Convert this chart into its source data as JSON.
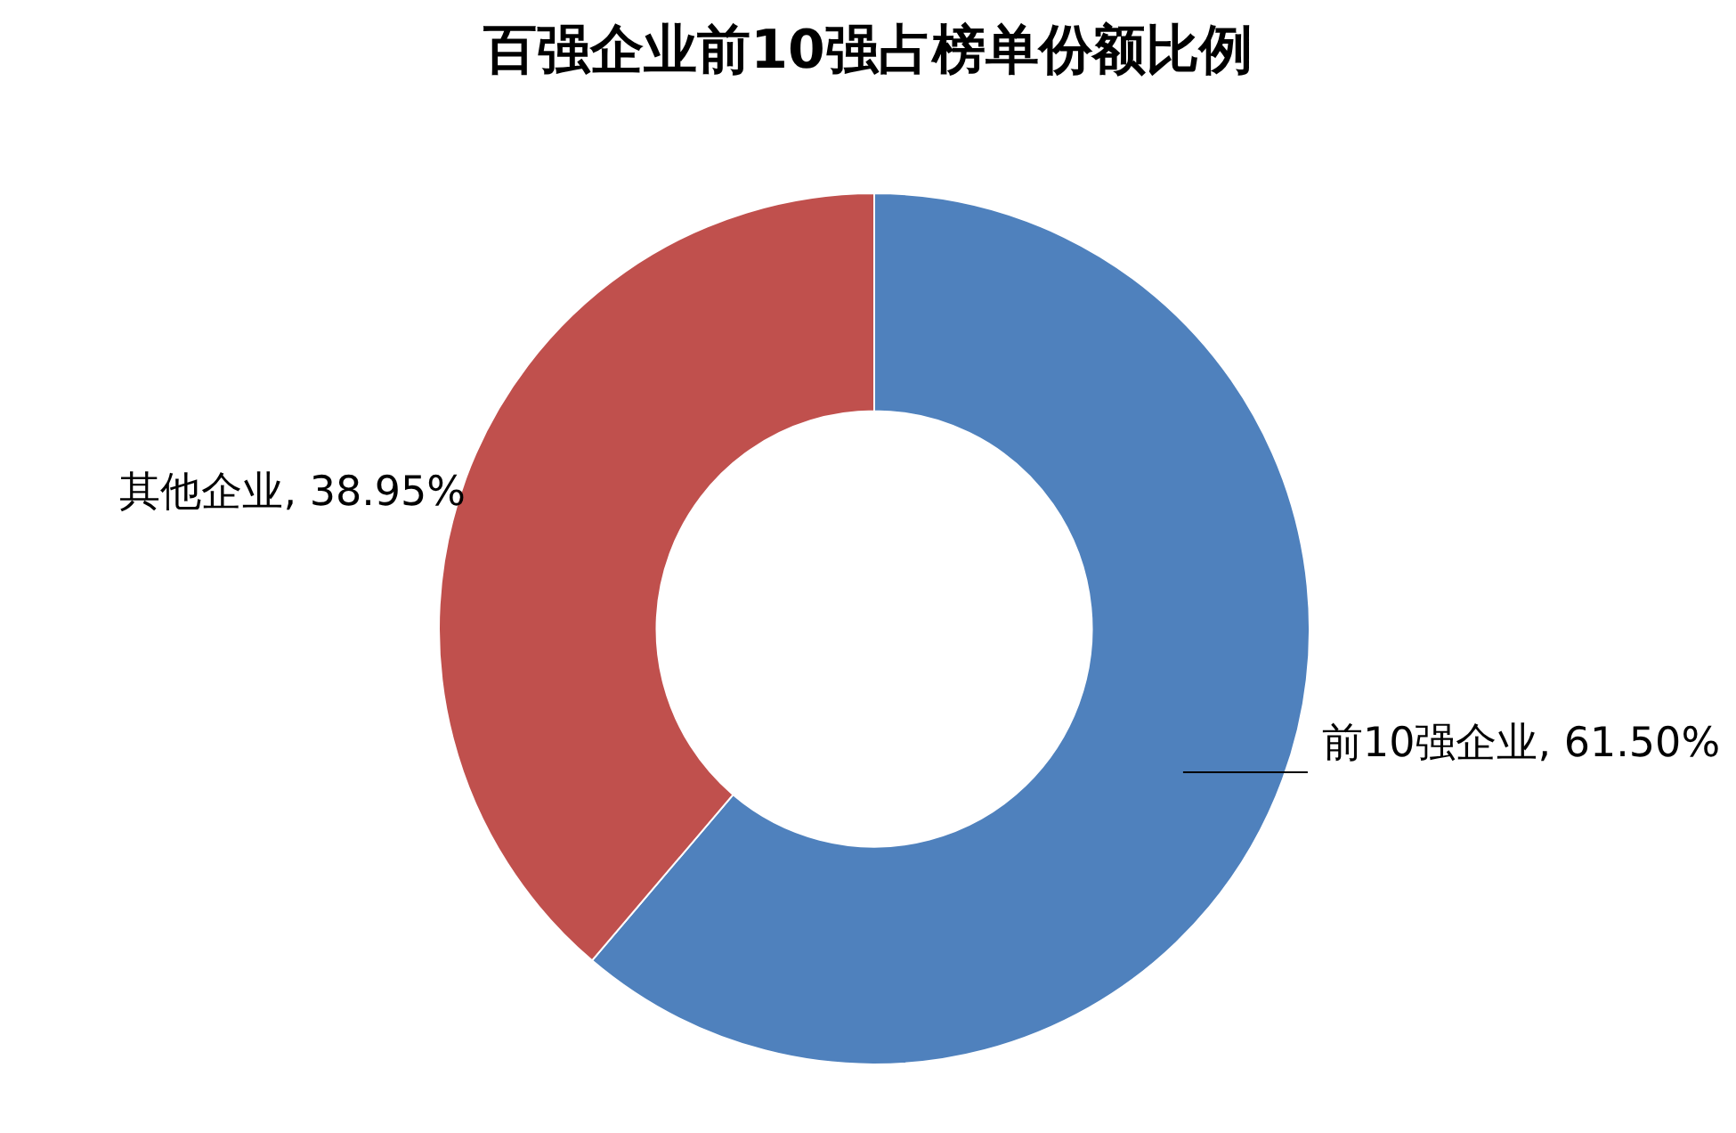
{
  "chart_data": {
    "type": "donut",
    "title": "百强企业前10强占榜单份额比例",
    "categories": [
      "前10强企业",
      "其他企业"
    ],
    "values": [
      61.5,
      38.95
    ],
    "colors": [
      "#4f81bd",
      "#c0504d"
    ],
    "value_labels": [
      "61.50%",
      "38.95%"
    ],
    "legend": false
  }
}
